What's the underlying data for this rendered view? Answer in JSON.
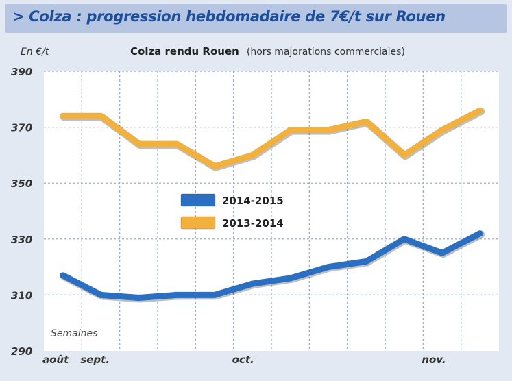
{
  "header": {
    "title": "> Colza : progression hebdomadaire de 7€/t sur Rouen"
  },
  "colors": {
    "header_bg": "#b6c6e2",
    "header_text": "#1d4e9b",
    "frame_bg": "#e3e9f3",
    "plot_bg": "#ffffff",
    "series_2014_2015": "#2a6fc2",
    "series_2013_2014": "#f2b13c"
  },
  "chart_data": {
    "type": "line",
    "title": "Colza rendu Rouen",
    "subtitle": "(hors majorations commerciales)",
    "ylabel": "En €/t",
    "xlabel": "Semaines",
    "ylim": [
      290,
      390
    ],
    "yticks": [
      290,
      310,
      330,
      350,
      370,
      390
    ],
    "x": [
      1,
      2,
      3,
      4,
      5,
      6,
      7,
      8,
      9,
      10,
      11,
      12
    ],
    "xlim": [
      0.5,
      12.5
    ],
    "xtick_labels": [
      {
        "x": 0.5,
        "label": "août"
      },
      {
        "x": 1.5,
        "label": "sept."
      },
      {
        "x": 5.5,
        "label": "oct."
      },
      {
        "x": 10.5,
        "label": "nov."
      }
    ],
    "grid": true,
    "legend_position": "center-left",
    "series": [
      {
        "name": "2014-2015",
        "values": [
          317,
          310,
          309,
          310,
          310,
          314,
          316,
          320,
          322,
          330,
          325,
          332
        ]
      },
      {
        "name": "2013-2014",
        "values": [
          374,
          374,
          364,
          364,
          356,
          360,
          369,
          369,
          372,
          360,
          369,
          376
        ]
      }
    ]
  }
}
